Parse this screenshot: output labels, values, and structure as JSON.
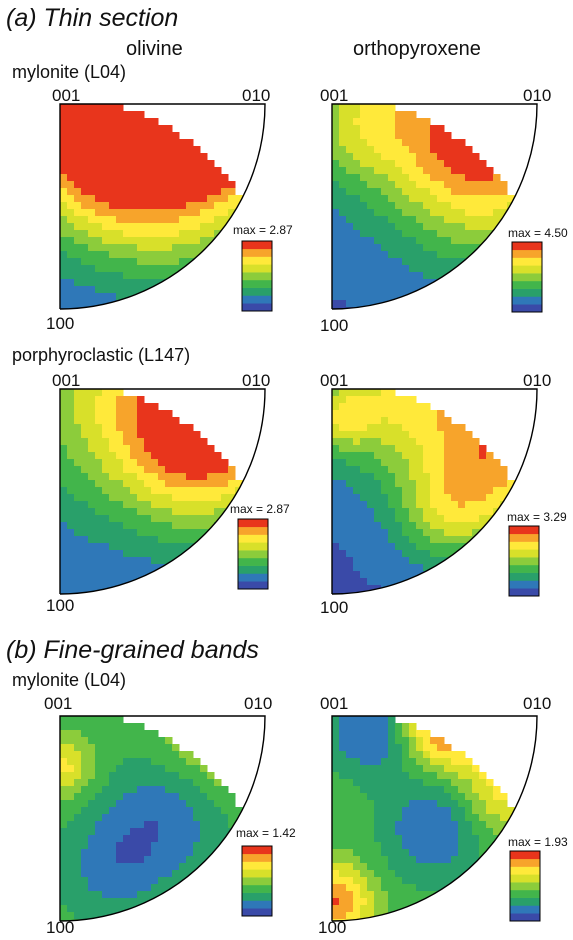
{
  "section_a_title": "(a) Thin section",
  "section_b_title": "(b) Fine-grained bands",
  "column_headers": [
    "olivine",
    "orthopyroxene"
  ],
  "row_labels": {
    "r1": "mylonite (L04)",
    "r2": "porphyroclastic (L147)",
    "r3": "mylonite (L04)"
  },
  "corner_labels": {
    "top_left": "001",
    "top_right": "010",
    "bottom": "100"
  },
  "panels": [
    {
      "id": "a1-olivine",
      "max_text": "max = 2.87",
      "max": 2.87
    },
    {
      "id": "a1-opx",
      "max_text": "max = 4.50",
      "max": 4.5
    },
    {
      "id": "a2-olivine",
      "max_text": "max = 2.87",
      "max": 2.87
    },
    {
      "id": "a2-opx",
      "max_text": "max = 3.29",
      "max": 3.29
    },
    {
      "id": "b-olivine",
      "max_text": "max = 1.42",
      "max": 1.42
    },
    {
      "id": "b-opx",
      "max_text": "max = 1.93",
      "max": 1.93
    }
  ],
  "colors": {
    "colormap": [
      "#3a4aa8",
      "#2f78b8",
      "#29a06a",
      "#42b54b",
      "#8ccc3b",
      "#d8e02a",
      "#ffe93a",
      "#f7a42b",
      "#e8351c"
    ],
    "outline": "#000000"
  }
}
